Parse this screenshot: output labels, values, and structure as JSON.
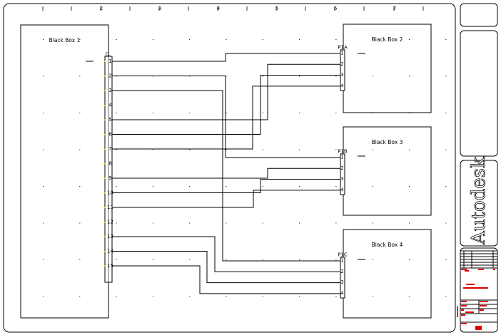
{
  "ruler": {
    "labels": [
      "2",
      "3",
      "4",
      "5",
      "6",
      "7"
    ]
  },
  "boxes": [
    {
      "id": "bb1",
      "label": "Black Box 1"
    },
    {
      "id": "bb2",
      "label": "Black Box 2"
    },
    {
      "id": "bb3",
      "label": "Black Box 3"
    },
    {
      "id": "bb4",
      "label": "Black Box 4"
    }
  ],
  "terminal_strip": {
    "label": "J1",
    "terminals": [
      "1",
      "2",
      "3",
      "4",
      "5",
      "6",
      "7",
      "8",
      "9",
      "10",
      "11",
      "12",
      "13",
      "14",
      "15"
    ]
  },
  "connectors": [
    {
      "label": "P1A",
      "box": "bb2",
      "pins": [
        "1",
        "2",
        "3",
        "4"
      ]
    },
    {
      "label": "P1B",
      "box": "bb3",
      "pins": [
        "1",
        "2",
        "3",
        "4"
      ]
    },
    {
      "label": "P1C",
      "box": "bb4",
      "pins": [
        "1",
        "2",
        "3",
        "4"
      ]
    }
  ],
  "connections": [
    {
      "terminal": 1,
      "connector": 0,
      "pin": 1
    },
    {
      "terminal": 2,
      "connector": 1,
      "pin": 1
    },
    {
      "terminal": 3,
      "connector": 2,
      "pin": 1
    },
    {
      "terminal": 5,
      "connector": 0,
      "pin": 2
    },
    {
      "terminal": 6,
      "connector": 0,
      "pin": 3
    },
    {
      "terminal": 7,
      "connector": 0,
      "pin": 4
    },
    {
      "terminal": 9,
      "connector": 1,
      "pin": 2
    },
    {
      "terminal": 10,
      "connector": 1,
      "pin": 3
    },
    {
      "terminal": 11,
      "connector": 1,
      "pin": 4
    },
    {
      "terminal": 13,
      "connector": 2,
      "pin": 2
    },
    {
      "terminal": 14,
      "connector": 2,
      "pin": 3
    },
    {
      "terminal": 15,
      "connector": 2,
      "pin": 4
    }
  ],
  "title_block": {
    "logo": "Autodesk"
  },
  "colors": {
    "line": "#000000",
    "title_red": "#e00000",
    "terminal_mark": "#e8e000"
  }
}
